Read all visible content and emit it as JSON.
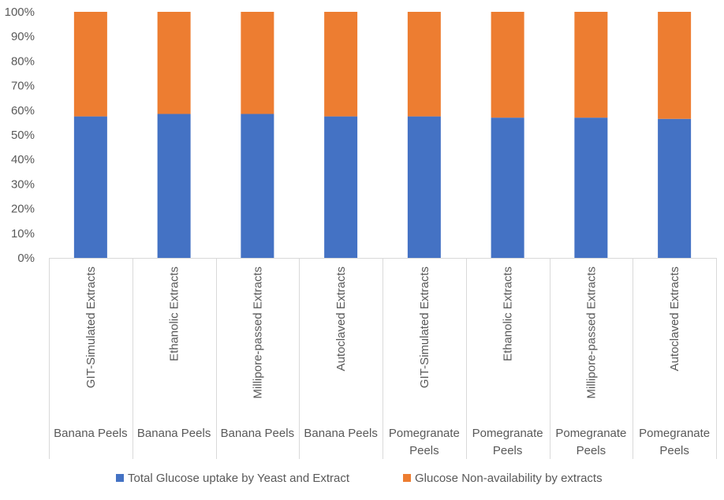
{
  "chart_data": {
    "type": "bar",
    "stacked": true,
    "normalized": true,
    "title": "",
    "xlabel": "",
    "ylabel": "",
    "ylim": [
      0,
      100
    ],
    "yticks": [
      "0%",
      "10%",
      "20%",
      "30%",
      "40%",
      "50%",
      "60%",
      "70%",
      "80%",
      "90%",
      "100%"
    ],
    "categories": [
      "GIT-Simulated Extracts",
      "Ethanolic Extracts",
      "Millipore-passed Extracts",
      "Autoclaved Extracts",
      "GIT-Simulated Extracts",
      "Ethanolic Extracts",
      "Millipore-passed Extracts",
      "Autoclaved Extracts"
    ],
    "groups": [
      "Banana Peels",
      "Banana Peels",
      "Banana Peels",
      "Banana Peels",
      "Pomegranate Peels",
      "Pomegranate Peels",
      "Pomegranate Peels",
      "Pomegranate Peels"
    ],
    "series": [
      {
        "name": "Total Glucose uptake by Yeast and Extract",
        "color": "#4472C4",
        "values": [
          57.5,
          58.5,
          58.5,
          57.5,
          57.5,
          57,
          57,
          56.5
        ]
      },
      {
        "name": "Glucose Non-availability by extracts",
        "color": "#ED7D31",
        "values": [
          42.5,
          41.5,
          41.5,
          42.5,
          42.5,
          43,
          43,
          43.5
        ]
      }
    ],
    "grid": false,
    "legend_position": "bottom"
  }
}
